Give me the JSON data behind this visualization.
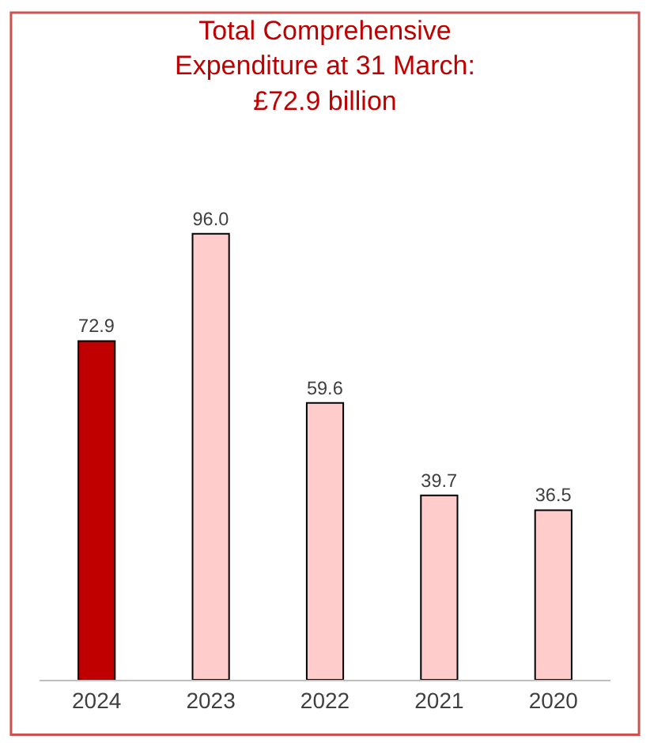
{
  "chart_data": {
    "type": "bar",
    "title": "Total Comprehensive Expenditure at 31 March: £72.9 billion",
    "categories": [
      "2024",
      "2023",
      "2022",
      "2021",
      "2020"
    ],
    "values": [
      72.9,
      96.0,
      59.6,
      39.7,
      36.5
    ],
    "value_labels": [
      "72.9",
      "96.0",
      "59.6",
      "39.7",
      "36.5"
    ],
    "colors": [
      "#c00000",
      "#ffcccc",
      "#ffcccc",
      "#ffcccc",
      "#ffcccc"
    ],
    "legend": false
  }
}
